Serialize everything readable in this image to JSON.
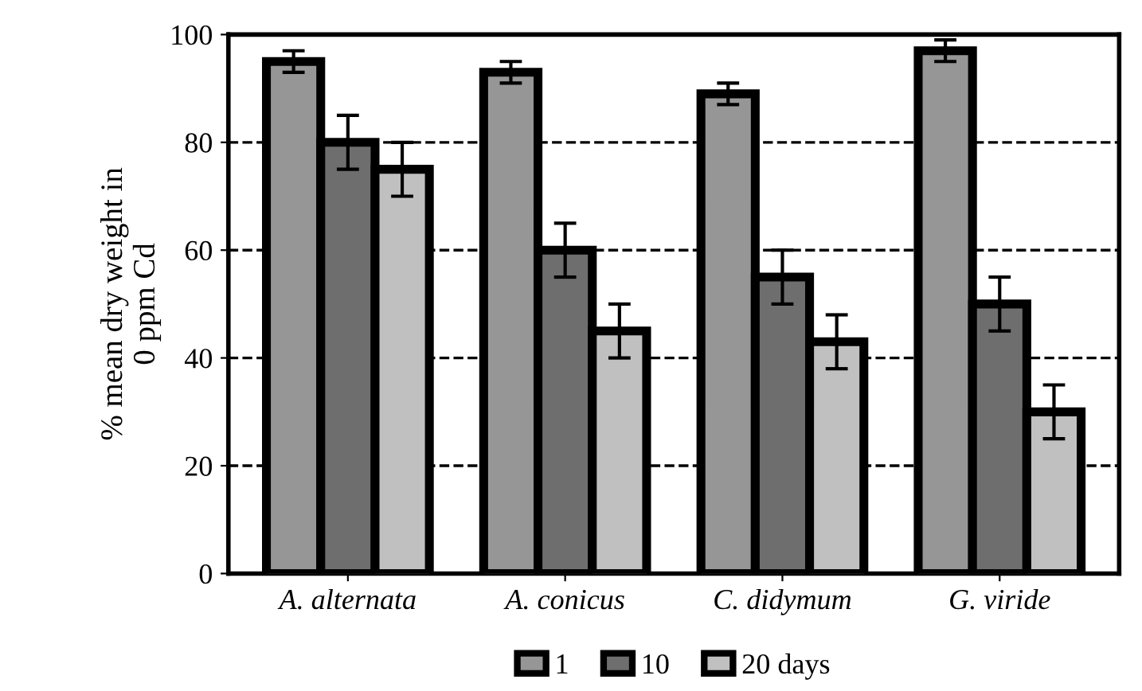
{
  "chart_data": {
    "type": "bar",
    "ylabel": "% mean dry weight in\n0 ppm Cd",
    "categories": [
      "A. alternata",
      "A. conicus",
      "C. didymum",
      "G. viride"
    ],
    "series": [
      {
        "name": "1",
        "color": "#969696",
        "values": [
          95,
          93,
          89,
          97
        ],
        "errors": [
          2,
          2,
          2,
          2
        ]
      },
      {
        "name": "10",
        "color": "#6e6e6e",
        "values": [
          80,
          60,
          55,
          50
        ],
        "errors": [
          5,
          5,
          5,
          5
        ]
      },
      {
        "name": "20 days",
        "color": "#c0c0c0",
        "values": [
          75,
          45,
          43,
          30
        ],
        "errors": [
          5,
          5,
          5,
          5
        ]
      }
    ],
    "ylim": [
      0,
      100
    ],
    "yticks": [
      0,
      20,
      40,
      60,
      80,
      100
    ],
    "grid": "y",
    "legend": "bottom"
  }
}
